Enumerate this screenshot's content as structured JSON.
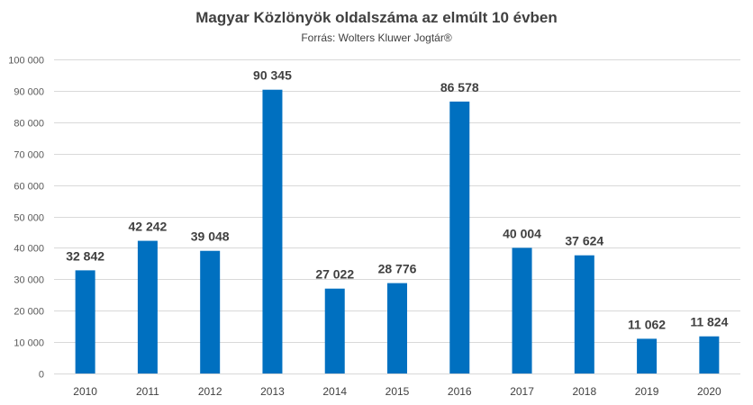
{
  "chart_data": {
    "type": "bar",
    "title": "Magyar Közlönyök oldalszáma az elmúlt 10 évben",
    "subtitle": "Forrás: Wolters Kluwer Jogtár®",
    "xlabel": "",
    "ylabel": "",
    "categories": [
      "2010",
      "2011",
      "2012",
      "2013",
      "2014",
      "2015",
      "2016",
      "2017",
      "2018",
      "2019",
      "2020"
    ],
    "values": [
      32842,
      42242,
      39048,
      90345,
      27022,
      28776,
      86578,
      40004,
      37624,
      11062,
      11824
    ],
    "data_labels": [
      "32 842",
      "42 242",
      "39 048",
      "90 345",
      "27 022",
      "28 776",
      "86 578",
      "40 004",
      "37 624",
      "11 062",
      "11 824"
    ],
    "ylim": [
      0,
      100000
    ],
    "yticks": [
      0,
      10000,
      20000,
      30000,
      40000,
      50000,
      60000,
      70000,
      80000,
      90000,
      100000
    ],
    "ytick_labels": [
      "0",
      "10 000",
      "20 000",
      "30 000",
      "40 000",
      "50 000",
      "60 000",
      "70 000",
      "80 000",
      "90 000",
      "100 000"
    ],
    "grid": true,
    "legend": "none",
    "colors": {
      "bar": "#0070C0",
      "grid": "#D9D9D9",
      "text": "#404040"
    }
  }
}
